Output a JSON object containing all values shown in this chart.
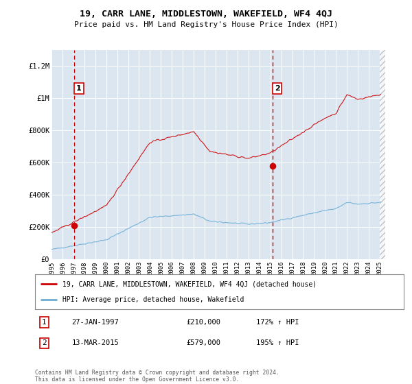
{
  "title": "19, CARR LANE, MIDDLESTOWN, WAKEFIELD, WF4 4QJ",
  "subtitle": "Price paid vs. HM Land Registry's House Price Index (HPI)",
  "legend_line1": "19, CARR LANE, MIDDLESTOWN, WAKEFIELD, WF4 4QJ (detached house)",
  "legend_line2": "HPI: Average price, detached house, Wakefield",
  "annotation1": {
    "label": "1",
    "date_x": 1997.07,
    "price": 210000,
    "date_str": "27-JAN-1997",
    "amount": "£210,000",
    "pct": "172% ↑ HPI"
  },
  "annotation2": {
    "label": "2",
    "date_x": 2015.19,
    "price": 579000,
    "date_str": "13-MAR-2015",
    "amount": "£579,000",
    "pct": "195% ↑ HPI"
  },
  "footer1": "Contains HM Land Registry data © Crown copyright and database right 2024.",
  "footer2": "This data is licensed under the Open Government Licence v3.0.",
  "ylim": [
    0,
    1300000
  ],
  "xlim": [
    1995.0,
    2025.5
  ],
  "yticks": [
    0,
    200000,
    400000,
    600000,
    800000,
    1000000,
    1200000
  ],
  "ytick_labels": [
    "£0",
    "£200K",
    "£400K",
    "£600K",
    "£800K",
    "£1M",
    "£1.2M"
  ],
  "xticks": [
    1995,
    1996,
    1997,
    1998,
    1999,
    2000,
    2001,
    2002,
    2003,
    2004,
    2005,
    2006,
    2007,
    2008,
    2009,
    2010,
    2011,
    2012,
    2013,
    2014,
    2015,
    2016,
    2017,
    2018,
    2019,
    2020,
    2021,
    2022,
    2023,
    2024,
    2025
  ],
  "bg_color": "#dce6f1",
  "hpi_color": "#6baed6",
  "price_color": "#cc0000",
  "vline_color": "#cc0000",
  "grid_color": "#ffffff"
}
